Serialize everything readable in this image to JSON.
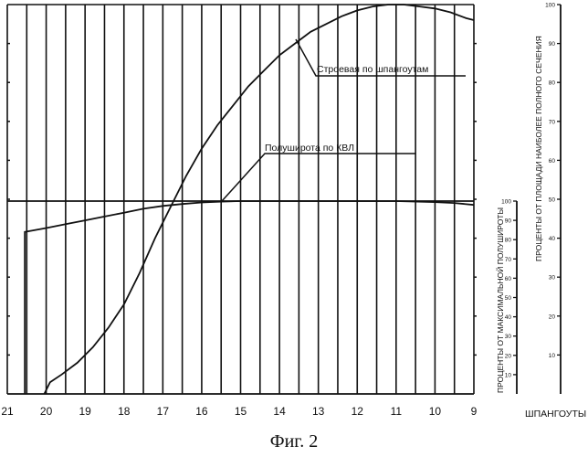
{
  "chart_data": {
    "type": "line",
    "caption": "Фиг. 2",
    "x_axis": {
      "label": "ШПАНГОУТЫ",
      "ticks": [
        "21",
        "20",
        "19",
        "18",
        "17",
        "16",
        "15",
        "14",
        "13",
        "12",
        "11",
        "10",
        "9"
      ],
      "range": [
        21,
        9
      ]
    },
    "y_axis_beam": {
      "label": "ПРОЦЕНТЫ ОТ МАКСИМАЛЬНОЙ ПОЛУШИРОТЫ",
      "ticks": [
        10,
        20,
        30,
        40,
        50,
        60,
        70,
        80,
        90,
        100
      ],
      "range": [
        0,
        100
      ]
    },
    "y_axis_area": {
      "label": "ПРОЦЕНТЫ ОТ ПЛОЩАДИ НАИБОЛЕЕ ПОЛНОГО СЕЧЕНИЯ",
      "ticks": [
        10,
        20,
        30,
        40,
        50,
        60,
        70,
        80,
        90,
        100
      ],
      "range": [
        0,
        100
      ]
    },
    "series": [
      {
        "name": "Строевая по шпангоутам",
        "axis": "area",
        "x": [
          20.05,
          19.9,
          19.6,
          19.2,
          18.8,
          18.4,
          18.0,
          17.6,
          17.2,
          16.8,
          16.4,
          16.0,
          15.6,
          15.2,
          14.8,
          14.4,
          14.0,
          13.6,
          13.2,
          12.8,
          12.4,
          12.0,
          11.6,
          11.2,
          10.8,
          10.4,
          10.0,
          9.6,
          9.2,
          9.0
        ],
        "y": [
          0,
          3,
          5,
          8,
          12,
          17,
          23,
          31,
          40,
          48,
          56,
          63,
          69,
          74,
          79,
          83,
          87,
          90,
          93,
          95,
          97,
          98.5,
          99.5,
          100,
          100,
          99.5,
          99,
          98,
          96.5,
          96
        ]
      },
      {
        "name": "Полуширота по КВЛ",
        "axis": "beam",
        "x": [
          20.55,
          20.55,
          20.0,
          19.5,
          19.0,
          18.5,
          18.0,
          17.5,
          17.0,
          16.5,
          16.0,
          15.5,
          15.0,
          14.0,
          13.0,
          12.0,
          11.0,
          10.0,
          9.5,
          9.0
        ],
        "y": [
          0,
          84,
          86,
          88,
          90,
          92,
          94,
          96,
          97.5,
          98.5,
          99.3,
          99.7,
          100,
          100,
          100,
          100,
          100,
          99.5,
          99,
          98
        ]
      }
    ]
  }
}
